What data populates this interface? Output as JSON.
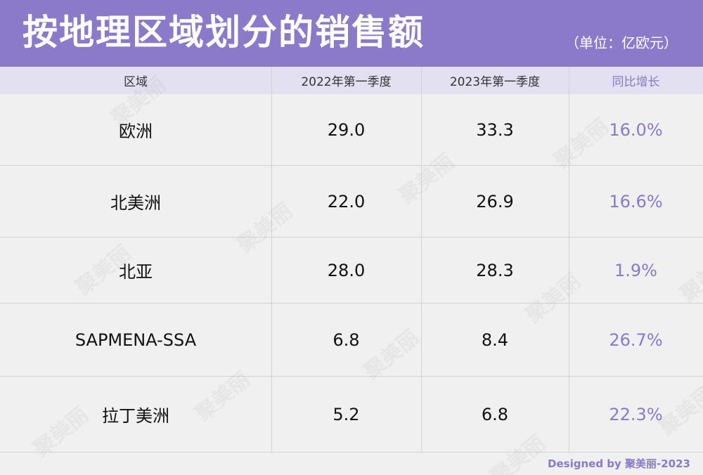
{
  "header": {
    "title": "按地理区域划分的销售额",
    "unit": "（单位：亿欧元）"
  },
  "table": {
    "columns": [
      "区域",
      "2022年第一季度",
      "2023年第一季度",
      "同比增长"
    ],
    "rows": [
      {
        "region": "欧洲",
        "q1_2022": "29.0",
        "q1_2023": "33.3",
        "growth": "16.0%"
      },
      {
        "region": "北美洲",
        "q1_2022": "22.0",
        "q1_2023": "26.9",
        "growth": "16.6%"
      },
      {
        "region": "北亚",
        "q1_2022": "28.0",
        "q1_2023": "28.3",
        "growth": "1.9%"
      },
      {
        "region": "SAPMENA-SSA",
        "q1_2022": "6.8",
        "q1_2023": "8.4",
        "growth": "26.7%"
      },
      {
        "region": "拉丁美洲",
        "q1_2022": "5.2",
        "q1_2023": "6.8",
        "growth": "22.3%"
      }
    ]
  },
  "watermark": "聚美丽",
  "footer": "Designed by 聚美丽-2023",
  "colors": {
    "accent": "#8b79c9",
    "header_row_bg": "#e3e0f1",
    "background": "#f0f0f0",
    "text": "#111111"
  },
  "chart_data": {
    "type": "table",
    "title": "按地理区域划分的销售额",
    "subtitle": "（单位：亿欧元）",
    "columns": [
      "区域",
      "2022年第一季度",
      "2023年第一季度",
      "同比增长"
    ],
    "categories": [
      "欧洲",
      "北美洲",
      "北亚",
      "SAPMENA-SSA",
      "拉丁美洲"
    ],
    "series": [
      {
        "name": "2022年第一季度",
        "values": [
          29.0,
          22.0,
          28.0,
          6.8,
          5.2
        ]
      },
      {
        "name": "2023年第一季度",
        "values": [
          33.3,
          26.9,
          28.3,
          8.4,
          6.8
        ]
      },
      {
        "name": "同比增长",
        "values": [
          16.0,
          16.6,
          1.9,
          26.7,
          22.3
        ]
      }
    ]
  }
}
